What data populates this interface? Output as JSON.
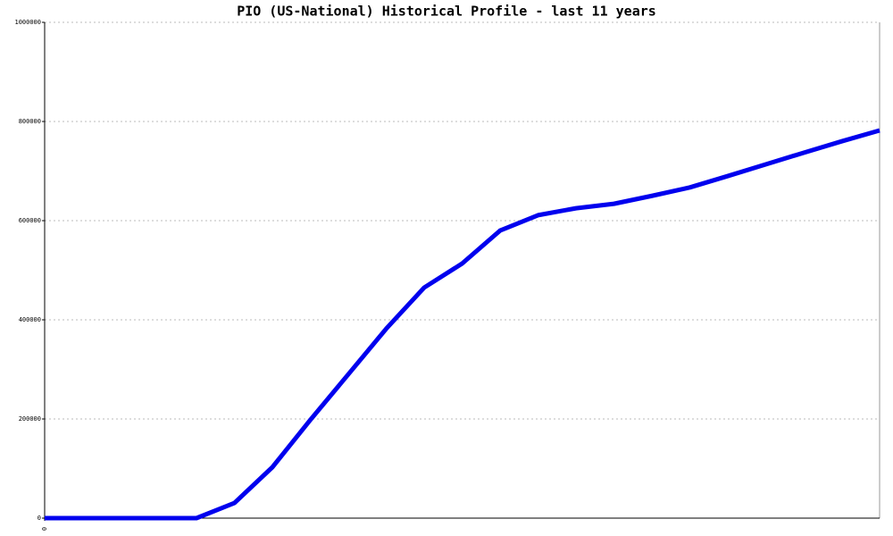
{
  "chart_data": {
    "type": "line",
    "title": "PIO (US-National) Historical Profile - last 11 years",
    "x": [
      0,
      1,
      2,
      3,
      4,
      5,
      6,
      7,
      8,
      9,
      10,
      11,
      12,
      13,
      14,
      15,
      16,
      17,
      18,
      19,
      20,
      21,
      22
    ],
    "series": [
      {
        "name": "PIO",
        "color": "#0000ee",
        "values": [
          0,
          0,
          0,
          0,
          0,
          30600,
          102700,
          198000,
          290000,
          382000,
          465000,
          513500,
          580000,
          611000,
          625000,
          634000,
          650000,
          667000,
          690000,
          713500,
          737000,
          760000,
          782000
        ]
      }
    ],
    "xlim": [
      0,
      22
    ],
    "xticks": [
      0
    ],
    "ylim": [
      0,
      1000000
    ],
    "yticks": [
      0,
      200000,
      400000,
      600000,
      800000,
      1000000
    ],
    "grid": true
  }
}
